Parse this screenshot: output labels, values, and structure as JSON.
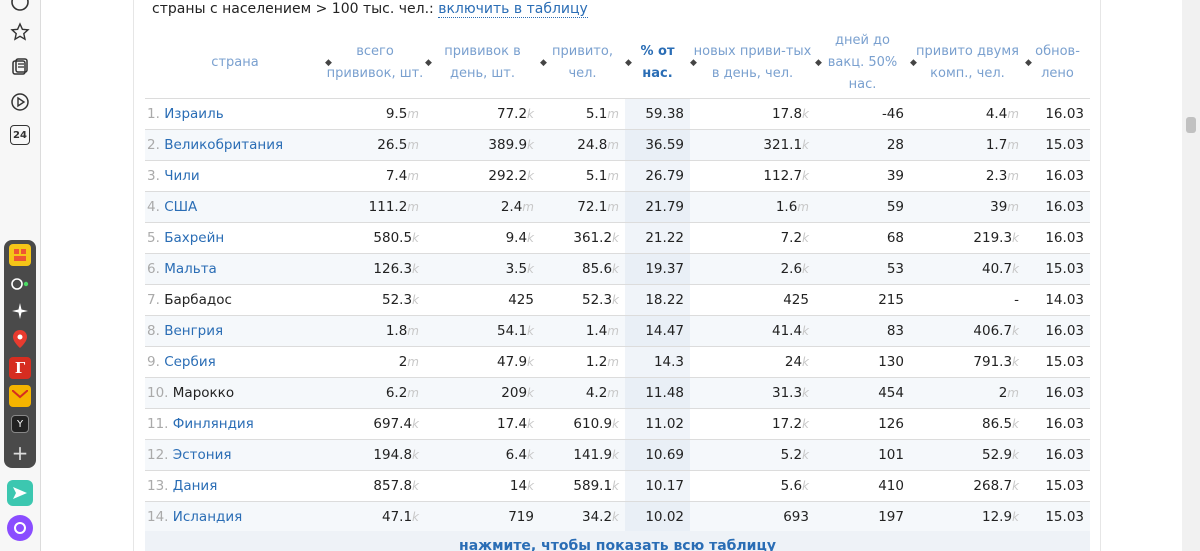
{
  "filter": {
    "text": "страны с населением > 100 тыс. чел.:",
    "link": "включить в таблицу"
  },
  "table": {
    "columns": [
      {
        "label": "страна"
      },
      {
        "label": "всего прививок, шт."
      },
      {
        "label": "прививок в день, шт."
      },
      {
        "label": "привито, чел."
      },
      {
        "label": "% от нас."
      },
      {
        "label": "новых приви-тых в день, чел."
      },
      {
        "label": "дней до вакц. 50% нас."
      },
      {
        "label": "привито двумя комп., чел."
      },
      {
        "label": "обнов-лено"
      }
    ],
    "rows": [
      {
        "n": "1.",
        "name": "Израиль",
        "linked": true,
        "total": "9.5",
        "total_u": "m",
        "perday": "77.2",
        "perday_u": "k",
        "vacc": "5.1",
        "vacc_u": "m",
        "pct": "59.38",
        "newv": "17.8",
        "newv_u": "k",
        "days": "-46",
        "two": "4.4",
        "two_u": "m",
        "upd": "16.03"
      },
      {
        "n": "2.",
        "name": "Великобритания",
        "linked": true,
        "total": "26.5",
        "total_u": "m",
        "perday": "389.9",
        "perday_u": "k",
        "vacc": "24.8",
        "vacc_u": "m",
        "pct": "36.59",
        "newv": "321.1",
        "newv_u": "k",
        "days": "28",
        "two": "1.7",
        "two_u": "m",
        "upd": "15.03"
      },
      {
        "n": "3.",
        "name": "Чили",
        "linked": true,
        "total": "7.4",
        "total_u": "m",
        "perday": "292.2",
        "perday_u": "k",
        "vacc": "5.1",
        "vacc_u": "m",
        "pct": "26.79",
        "newv": "112.7",
        "newv_u": "k",
        "days": "39",
        "two": "2.3",
        "two_u": "m",
        "upd": "16.03"
      },
      {
        "n": "4.",
        "name": "США",
        "linked": true,
        "total": "111.2",
        "total_u": "m",
        "perday": "2.4",
        "perday_u": "m",
        "vacc": "72.1",
        "vacc_u": "m",
        "pct": "21.79",
        "newv": "1.6",
        "newv_u": "m",
        "days": "59",
        "two": "39",
        "two_u": "m",
        "upd": "16.03"
      },
      {
        "n": "5.",
        "name": "Бахрейн",
        "linked": true,
        "total": "580.5",
        "total_u": "k",
        "perday": "9.4",
        "perday_u": "k",
        "vacc": "361.2",
        "vacc_u": "k",
        "pct": "21.22",
        "newv": "7.2",
        "newv_u": "k",
        "days": "68",
        "two": "219.3",
        "two_u": "k",
        "upd": "16.03"
      },
      {
        "n": "6.",
        "name": "Мальта",
        "linked": true,
        "total": "126.3",
        "total_u": "k",
        "perday": "3.5",
        "perday_u": "k",
        "vacc": "85.6",
        "vacc_u": "k",
        "pct": "19.37",
        "newv": "2.6",
        "newv_u": "k",
        "days": "53",
        "two": "40.7",
        "two_u": "k",
        "upd": "15.03"
      },
      {
        "n": "7.",
        "name": "Барбадос",
        "linked": false,
        "total": "52.3",
        "total_u": "k",
        "perday": "425",
        "perday_u": "",
        "vacc": "52.3",
        "vacc_u": "k",
        "pct": "18.22",
        "newv": "425",
        "newv_u": "",
        "days": "215",
        "two": "-",
        "two_u": "",
        "upd": "14.03"
      },
      {
        "n": "8.",
        "name": "Венгрия",
        "linked": true,
        "total": "1.8",
        "total_u": "m",
        "perday": "54.1",
        "perday_u": "k",
        "vacc": "1.4",
        "vacc_u": "m",
        "pct": "14.47",
        "newv": "41.4",
        "newv_u": "k",
        "days": "83",
        "two": "406.7",
        "two_u": "k",
        "upd": "16.03"
      },
      {
        "n": "9.",
        "name": "Сербия",
        "linked": true,
        "total": "2",
        "total_u": "m",
        "perday": "47.9",
        "perday_u": "k",
        "vacc": "1.2",
        "vacc_u": "m",
        "pct": "14.3",
        "newv": "24",
        "newv_u": "k",
        "days": "130",
        "two": "791.3",
        "two_u": "k",
        "upd": "15.03"
      },
      {
        "n": "10.",
        "name": "Марокко",
        "linked": false,
        "total": "6.2",
        "total_u": "m",
        "perday": "209",
        "perday_u": "k",
        "vacc": "4.2",
        "vacc_u": "m",
        "pct": "11.48",
        "newv": "31.3",
        "newv_u": "k",
        "days": "454",
        "two": "2",
        "two_u": "m",
        "upd": "16.03"
      },
      {
        "n": "11.",
        "name": "Финляндия",
        "linked": true,
        "total": "697.4",
        "total_u": "k",
        "perday": "17.4",
        "perday_u": "k",
        "vacc": "610.9",
        "vacc_u": "k",
        "pct": "11.02",
        "newv": "17.2",
        "newv_u": "k",
        "days": "126",
        "two": "86.5",
        "two_u": "k",
        "upd": "16.03"
      },
      {
        "n": "12.",
        "name": "Эстония",
        "linked": true,
        "total": "194.8",
        "total_u": "k",
        "perday": "6.4",
        "perday_u": "k",
        "vacc": "141.9",
        "vacc_u": "k",
        "pct": "10.69",
        "newv": "5.2",
        "newv_u": "k",
        "days": "101",
        "two": "52.9",
        "two_u": "k",
        "upd": "16.03"
      },
      {
        "n": "13.",
        "name": "Дания",
        "linked": true,
        "total": "857.8",
        "total_u": "k",
        "perday": "14",
        "perday_u": "k",
        "vacc": "589.1",
        "vacc_u": "k",
        "pct": "10.17",
        "newv": "5.6",
        "newv_u": "k",
        "days": "410",
        "two": "268.7",
        "two_u": "k",
        "upd": "15.03"
      },
      {
        "n": "14.",
        "name": "Исландия",
        "linked": true,
        "total": "47.1",
        "total_u": "k",
        "perday": "719",
        "perday_u": "",
        "vacc": "34.2",
        "vacc_u": "k",
        "pct": "10.02",
        "newv": "693",
        "newv_u": "",
        "days": "197",
        "two": "12.9",
        "two_u": "k",
        "upd": "15.03"
      }
    ]
  },
  "show_all": "нажмите, чтобы показать всю таблицу",
  "sidebar": {
    "badge_24": "24",
    "dock_y": "Y"
  },
  "colors": {
    "link": "#2a6db5",
    "header": "#7aa0cf"
  }
}
